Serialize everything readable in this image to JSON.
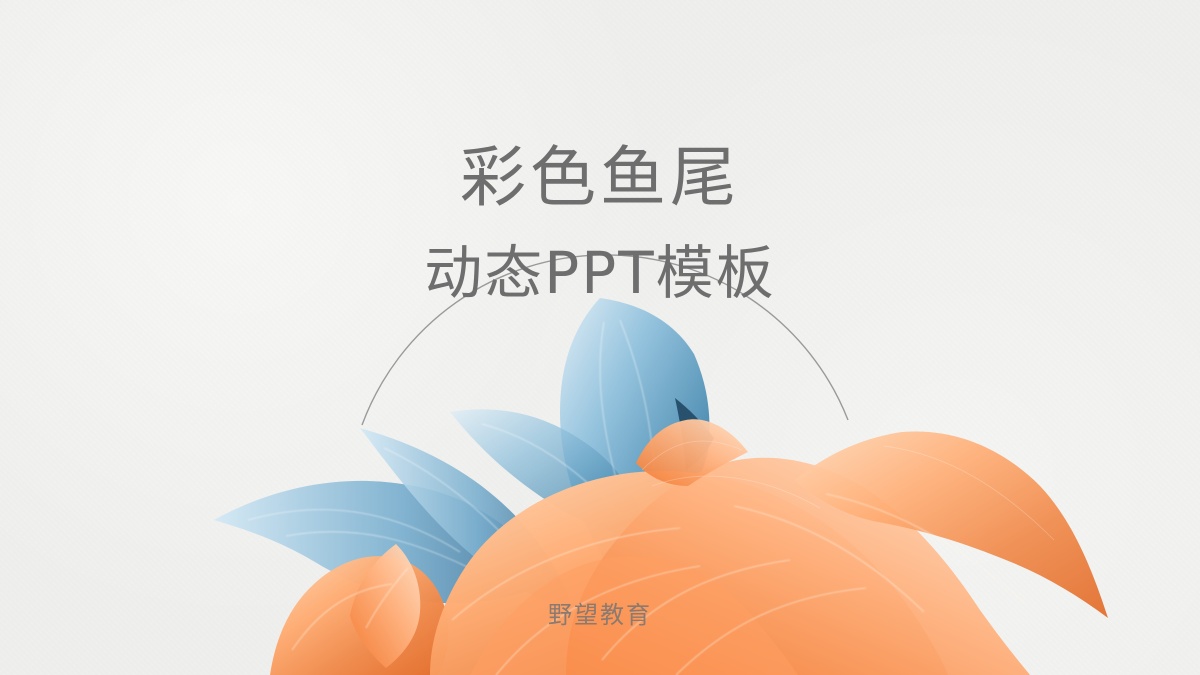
{
  "slide": {
    "title": "彩色鱼尾",
    "subtitle": "动态PPT模板",
    "brand": "野望教育"
  },
  "colors": {
    "background": "#efefed",
    "text": "#6e6e6e",
    "circle_stroke": "#9a9a9a",
    "fin_blue": "#4f8fb4",
    "fin_orange": "#f08a4b"
  },
  "icons": {
    "artwork": "betta-fish-fin-illustration",
    "frame": "thin-circle-outline"
  }
}
